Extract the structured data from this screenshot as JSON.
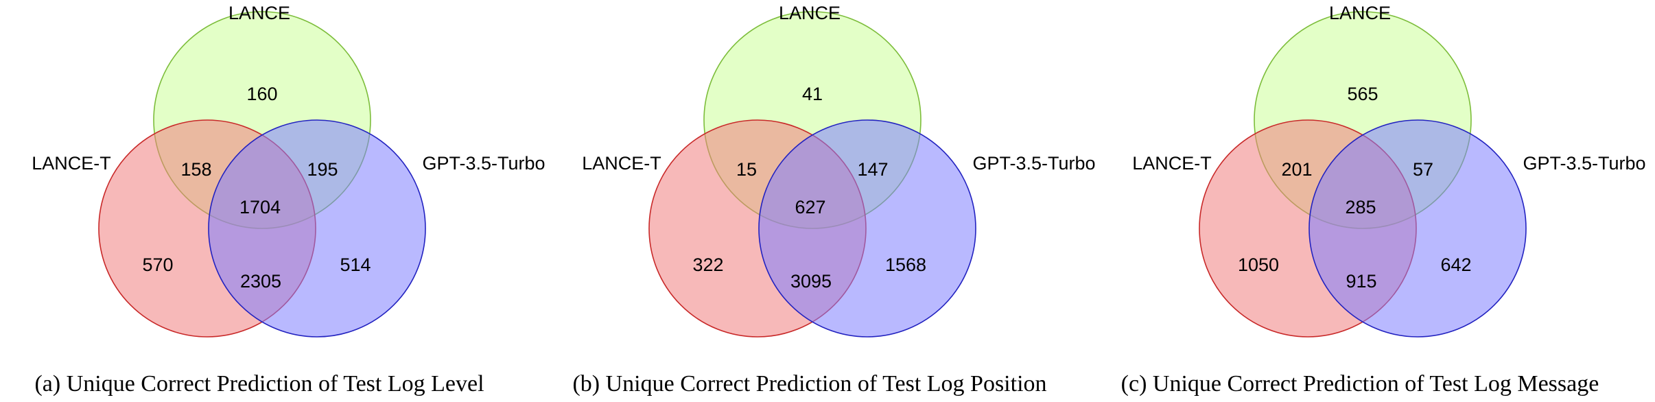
{
  "colors": {
    "lance_fill": "#ccff99",
    "lance_stroke": "#7cbd3a",
    "lance_t_fill": "#f08080",
    "lance_t_stroke": "#c82828",
    "gpt_fill": "#8080ff",
    "gpt_stroke": "#2222c0"
  },
  "set_names": {
    "lance": "LANCE",
    "lance_t": "LANCE-T",
    "gpt": "GPT-3.5-Turbo"
  },
  "panels": [
    {
      "caption": "(a) Unique Correct Prediction of Test Log Level",
      "counts": {
        "lance_only": "160",
        "lance_t_only": "570",
        "gpt_only": "514",
        "lance_and_lance_t": "158",
        "lance_and_gpt": "195",
        "lance_t_and_gpt": "2305",
        "all_three": "1704"
      }
    },
    {
      "caption": "(b) Unique Correct Prediction of Test Log Position",
      "counts": {
        "lance_only": "41",
        "lance_t_only": "322",
        "gpt_only": "1568",
        "lance_and_lance_t": "15",
        "lance_and_gpt": "147",
        "lance_t_and_gpt": "3095",
        "all_three": "627"
      }
    },
    {
      "caption": "(c) Unique Correct Prediction of Test Log Message",
      "counts": {
        "lance_only": "565",
        "lance_t_only": "1050",
        "gpt_only": "642",
        "lance_and_lance_t": "201",
        "lance_and_gpt": "57",
        "lance_t_and_gpt": "915",
        "all_three": "285"
      }
    }
  ]
}
